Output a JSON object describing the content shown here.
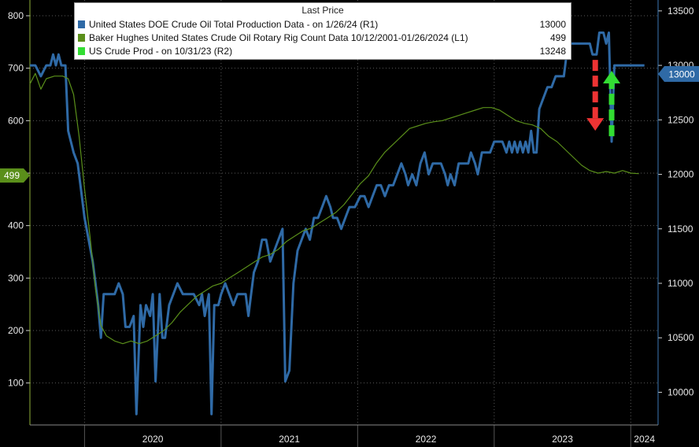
{
  "legend": {
    "title": "Last Price",
    "items": [
      {
        "label": "United States DOE Crude Oil Total Production Data -  on 1/26/24  (R1)",
        "value": "13000",
        "color": "#2f6aa6"
      },
      {
        "label": "Baker Hughes United States Crude Oil Rotary Rig Count Data 10/12/2001-01/26/2024   (L1)",
        "value": "499",
        "color": "#5a8f1a"
      },
      {
        "label": "US Crude Prod -  on 10/31/23  (R2)",
        "value": "13248",
        "color": "#33dd33"
      }
    ]
  },
  "badges": {
    "left": "499",
    "right": "13000"
  },
  "chart_data": {
    "type": "line",
    "x_axis": {
      "labels": [
        "2020",
        "2021",
        "2022",
        "2023",
        "2024"
      ],
      "range": [
        2019.6,
        2024.2
      ]
    },
    "left_axis": {
      "ticks": [
        "100",
        "200",
        "300",
        "400",
        "500",
        "600",
        "700",
        "800"
      ],
      "range": [
        20,
        830
      ]
    },
    "right_axis": {
      "ticks": [
        "10000",
        "10500",
        "11000",
        "11500",
        "12000",
        "12500",
        "13000",
        "13500"
      ],
      "range": [
        9700,
        13600
      ]
    },
    "grid": true,
    "legend_position": "top",
    "series": [
      {
        "name": "United States DOE Crude Oil Total Production Data -  on 1/26/24  (R1)",
        "axis": "right",
        "color": "#2f6aa6",
        "points": [
          [
            2019.6,
            13000
          ],
          [
            2019.64,
            13000
          ],
          [
            2019.68,
            12900
          ],
          [
            2019.72,
            13000
          ],
          [
            2019.75,
            13000
          ],
          [
            2019.77,
            13100
          ],
          [
            2019.79,
            13000
          ],
          [
            2019.81,
            13100
          ],
          [
            2019.83,
            13000
          ],
          [
            2019.86,
            13000
          ],
          [
            2019.88,
            12400
          ],
          [
            2019.92,
            12200
          ],
          [
            2019.95,
            12100
          ],
          [
            2019.97,
            11900
          ],
          [
            2020.0,
            11600
          ],
          [
            2020.03,
            11400
          ],
          [
            2020.06,
            11200
          ],
          [
            2020.08,
            11000
          ],
          [
            2020.1,
            10800
          ],
          [
            2020.12,
            10500
          ],
          [
            2020.14,
            10900
          ],
          [
            2020.18,
            10900
          ],
          [
            2020.22,
            10900
          ],
          [
            2020.25,
            11000
          ],
          [
            2020.28,
            10900
          ],
          [
            2020.3,
            10600
          ],
          [
            2020.33,
            10600
          ],
          [
            2020.36,
            10700
          ],
          [
            2020.38,
            9800
          ],
          [
            2020.41,
            10800
          ],
          [
            2020.43,
            10600
          ],
          [
            2020.45,
            10800
          ],
          [
            2020.48,
            10700
          ],
          [
            2020.5,
            10900
          ],
          [
            2020.52,
            10100
          ],
          [
            2020.55,
            10900
          ],
          [
            2020.57,
            10500
          ],
          [
            2020.59,
            10500
          ],
          [
            2020.62,
            10800
          ],
          [
            2020.65,
            10900
          ],
          [
            2020.68,
            11000
          ],
          [
            2020.72,
            10900
          ],
          [
            2020.76,
            10900
          ],
          [
            2020.8,
            10900
          ],
          [
            2020.84,
            10800
          ],
          [
            2020.86,
            10900
          ],
          [
            2020.88,
            10700
          ],
          [
            2020.91,
            10900
          ],
          [
            2020.93,
            9800
          ],
          [
            2020.95,
            10800
          ],
          [
            2020.98,
            10800
          ],
          [
            2021.0,
            10900
          ],
          [
            2021.03,
            11000
          ],
          [
            2021.06,
            10900
          ],
          [
            2021.09,
            10800
          ],
          [
            2021.12,
            10900
          ],
          [
            2021.15,
            10900
          ],
          [
            2021.18,
            10900
          ],
          [
            2021.2,
            10700
          ],
          [
            2021.22,
            10900
          ],
          [
            2021.24,
            11100
          ],
          [
            2021.27,
            11200
          ],
          [
            2021.3,
            11400
          ],
          [
            2021.33,
            11400
          ],
          [
            2021.36,
            11200
          ],
          [
            2021.39,
            11300
          ],
          [
            2021.42,
            11400
          ],
          [
            2021.45,
            11500
          ],
          [
            2021.47,
            10100
          ],
          [
            2021.5,
            10200
          ],
          [
            2021.53,
            11000
          ],
          [
            2021.56,
            11300
          ],
          [
            2021.59,
            11400
          ],
          [
            2021.62,
            11500
          ],
          [
            2021.65,
            11400
          ],
          [
            2021.68,
            11600
          ],
          [
            2021.71,
            11600
          ],
          [
            2021.74,
            11700
          ],
          [
            2021.77,
            11800
          ],
          [
            2021.8,
            11700
          ],
          [
            2021.82,
            11600
          ],
          [
            2021.85,
            11600
          ],
          [
            2021.88,
            11500
          ],
          [
            2021.91,
            11600
          ],
          [
            2021.94,
            11700
          ],
          [
            2021.98,
            11700
          ],
          [
            2022.02,
            11800
          ],
          [
            2022.05,
            11800
          ],
          [
            2022.08,
            11700
          ],
          [
            2022.11,
            11800
          ],
          [
            2022.14,
            11900
          ],
          [
            2022.17,
            11900
          ],
          [
            2022.2,
            11800
          ],
          [
            2022.23,
            11900
          ],
          [
            2022.26,
            11900
          ],
          [
            2022.29,
            12000
          ],
          [
            2022.32,
            12100
          ],
          [
            2022.35,
            12000
          ],
          [
            2022.37,
            11900
          ],
          [
            2022.4,
            12000
          ],
          [
            2022.43,
            11900
          ],
          [
            2022.46,
            12100
          ],
          [
            2022.49,
            12200
          ],
          [
            2022.52,
            12000
          ],
          [
            2022.55,
            12100
          ],
          [
            2022.58,
            12100
          ],
          [
            2022.61,
            12100
          ],
          [
            2022.64,
            12000
          ],
          [
            2022.66,
            11900
          ],
          [
            2022.68,
            12000
          ],
          [
            2022.71,
            11900
          ],
          [
            2022.74,
            12100
          ],
          [
            2022.78,
            12100
          ],
          [
            2022.81,
            12100
          ],
          [
            2022.83,
            12200
          ],
          [
            2022.86,
            12100
          ],
          [
            2022.88,
            12000
          ],
          [
            2022.91,
            12200
          ],
          [
            2022.94,
            12200
          ],
          [
            2022.97,
            12200
          ],
          [
            2023.0,
            12300
          ],
          [
            2023.03,
            12300
          ],
          [
            2023.06,
            12300
          ],
          [
            2023.09,
            12200
          ],
          [
            2023.11,
            12300
          ],
          [
            2023.13,
            12200
          ],
          [
            2023.15,
            12300
          ],
          [
            2023.17,
            12200
          ],
          [
            2023.19,
            12300
          ],
          [
            2023.21,
            12200
          ],
          [
            2023.23,
            12300
          ],
          [
            2023.25,
            12200
          ],
          [
            2023.27,
            12400
          ],
          [
            2023.29,
            12200
          ],
          [
            2023.31,
            12200
          ],
          [
            2023.33,
            12600
          ],
          [
            2023.36,
            12700
          ],
          [
            2023.39,
            12800
          ],
          [
            2023.42,
            12800
          ],
          [
            2023.45,
            12900
          ],
          [
            2023.48,
            12900
          ],
          [
            2023.51,
            12900
          ],
          [
            2023.54,
            13200
          ],
          [
            2023.58,
            13200
          ],
          [
            2023.62,
            13200
          ],
          [
            2023.66,
            13200
          ],
          [
            2023.7,
            13200
          ],
          [
            2023.72,
            13100
          ],
          [
            2023.75,
            13100
          ],
          [
            2023.77,
            13300
          ],
          [
            2023.8,
            13300
          ],
          [
            2023.82,
            13200
          ],
          [
            2023.84,
            13300
          ],
          [
            2023.86,
            12300
          ],
          [
            2023.88,
            13000
          ],
          [
            2023.92,
            13000
          ],
          [
            2023.98,
            13000
          ],
          [
            2024.05,
            13000
          ],
          [
            2024.1,
            13000
          ]
        ]
      },
      {
        "name": "Baker Hughes United States Crude Oil Rotary Rig Count Data 10/12/2001-01/26/2024   (L1)",
        "axis": "left",
        "color": "#5a8f1a",
        "points": [
          [
            2019.6,
            670
          ],
          [
            2019.64,
            690
          ],
          [
            2019.68,
            660
          ],
          [
            2019.72,
            680
          ],
          [
            2019.78,
            685
          ],
          [
            2019.84,
            685
          ],
          [
            2019.88,
            680
          ],
          [
            2019.92,
            650
          ],
          [
            2019.96,
            570
          ],
          [
            2020.0,
            470
          ],
          [
            2020.04,
            380
          ],
          [
            2020.08,
            280
          ],
          [
            2020.12,
            210
          ],
          [
            2020.16,
            190
          ],
          [
            2020.22,
            180
          ],
          [
            2020.28,
            175
          ],
          [
            2020.34,
            180
          ],
          [
            2020.4,
            175
          ],
          [
            2020.46,
            180
          ],
          [
            2020.52,
            190
          ],
          [
            2020.58,
            200
          ],
          [
            2020.64,
            215
          ],
          [
            2020.7,
            235
          ],
          [
            2020.76,
            250
          ],
          [
            2020.82,
            265
          ],
          [
            2020.88,
            275
          ],
          [
            2020.94,
            285
          ],
          [
            2021.0,
            290
          ],
          [
            2021.06,
            300
          ],
          [
            2021.12,
            310
          ],
          [
            2021.18,
            320
          ],
          [
            2021.24,
            330
          ],
          [
            2021.3,
            340
          ],
          [
            2021.36,
            345
          ],
          [
            2021.42,
            355
          ],
          [
            2021.48,
            370
          ],
          [
            2021.54,
            380
          ],
          [
            2021.6,
            390
          ],
          [
            2021.66,
            395
          ],
          [
            2021.72,
            405
          ],
          [
            2021.78,
            415
          ],
          [
            2021.84,
            425
          ],
          [
            2021.9,
            440
          ],
          [
            2021.96,
            460
          ],
          [
            2022.02,
            480
          ],
          [
            2022.08,
            495
          ],
          [
            2022.14,
            520
          ],
          [
            2022.2,
            540
          ],
          [
            2022.26,
            555
          ],
          [
            2022.32,
            570
          ],
          [
            2022.38,
            585
          ],
          [
            2022.44,
            590
          ],
          [
            2022.5,
            595
          ],
          [
            2022.56,
            598
          ],
          [
            2022.62,
            600
          ],
          [
            2022.68,
            605
          ],
          [
            2022.74,
            610
          ],
          [
            2022.8,
            615
          ],
          [
            2022.86,
            620
          ],
          [
            2022.92,
            625
          ],
          [
            2022.98,
            625
          ],
          [
            2023.04,
            620
          ],
          [
            2023.1,
            610
          ],
          [
            2023.16,
            600
          ],
          [
            2023.22,
            595
          ],
          [
            2023.28,
            592
          ],
          [
            2023.34,
            585
          ],
          [
            2023.4,
            570
          ],
          [
            2023.46,
            560
          ],
          [
            2023.52,
            545
          ],
          [
            2023.58,
            530
          ],
          [
            2023.64,
            515
          ],
          [
            2023.7,
            505
          ],
          [
            2023.76,
            500
          ],
          [
            2023.82,
            503
          ],
          [
            2023.88,
            500
          ],
          [
            2023.94,
            505
          ],
          [
            2024.0,
            500
          ],
          [
            2024.06,
            499
          ]
        ]
      }
    ],
    "annotations": [
      {
        "type": "arrow-down",
        "color": "#ee3333",
        "x": 2023.74,
        "from": 13050,
        "to": 12400
      },
      {
        "type": "arrow-up",
        "color": "#33dd33",
        "x": 2023.86,
        "from": 12350,
        "to": 12950
      }
    ]
  }
}
